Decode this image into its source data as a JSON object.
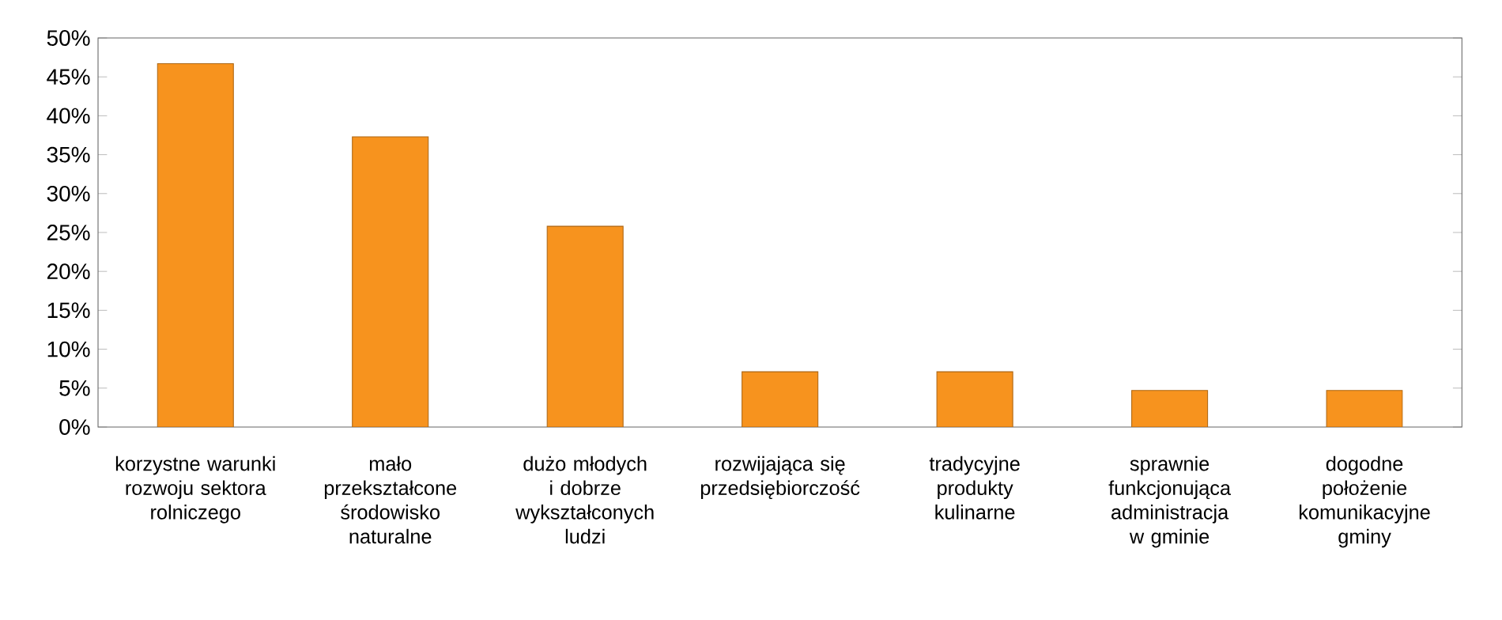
{
  "chart_data": {
    "type": "bar",
    "categories": [
      "korzystne warunki rozwoju sektora rolniczego",
      "mało przekształcone środowisko naturalne",
      "dużo młodych i dobrze wykształconych ludzi",
      "rozwijająca się przedsiębiorczość",
      "tradycyjne produkty kulinarne",
      "sprawnie funkcjonująca administracja w gminie",
      "dogodne położenie komunikacyjne gminy"
    ],
    "values": [
      46.7,
      37.3,
      25.8,
      7.1,
      7.1,
      4.7,
      4.7
    ],
    "color": "#f7931e",
    "ylim": [
      0,
      50
    ],
    "yticks": [
      {
        "value": 0,
        "label": "0%"
      },
      {
        "value": 5,
        "label": "5%"
      },
      {
        "value": 10,
        "label": "10%"
      },
      {
        "value": 15,
        "label": "15%"
      },
      {
        "value": 20,
        "label": "20%"
      },
      {
        "value": 25,
        "label": "25%"
      },
      {
        "value": 30,
        "label": "30%"
      },
      {
        "value": 35,
        "label": "35%"
      },
      {
        "value": 40,
        "label": "40%"
      },
      {
        "value": 45,
        "label": "45%"
      },
      {
        "value": 50,
        "label": "50%"
      }
    ]
  }
}
